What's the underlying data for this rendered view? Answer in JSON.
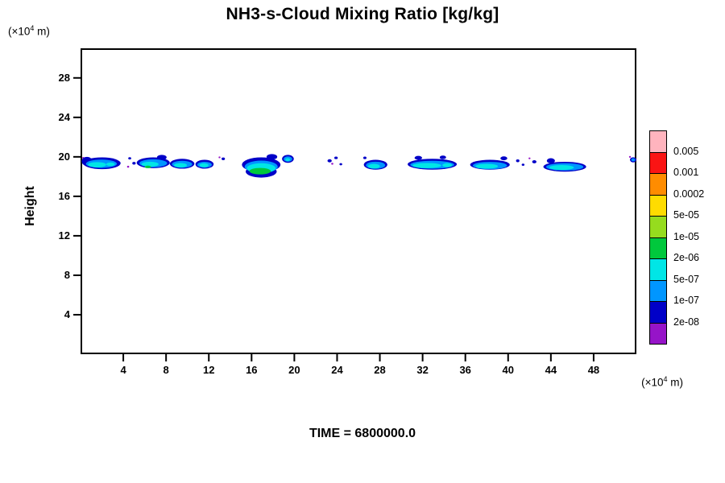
{
  "title": "NH3-s-Cloud Mixing Ratio [kg/kg]",
  "time_label": "TIME = 6800000.0",
  "y_axis": {
    "label": "Height",
    "unit_prefix": "(×10",
    "unit_sup": "4",
    "unit_suffix": " m)",
    "ticks": [
      4,
      8,
      12,
      16,
      20,
      24,
      28
    ],
    "range": [
      0,
      31
    ]
  },
  "x_axis": {
    "unit_prefix": "(×10",
    "unit_sup": "4",
    "unit_suffix": " m)",
    "ticks": [
      4,
      8,
      12,
      16,
      20,
      24,
      28,
      32,
      36,
      40,
      44,
      48
    ],
    "range": [
      0,
      52
    ]
  },
  "colorbar": {
    "labels": [
      "0.005",
      "0.001",
      "0.0002",
      "5e-05",
      "1e-05",
      "2e-06",
      "5e-07",
      "1e-07",
      "2e-08"
    ],
    "colors_top_to_bottom": [
      "#ffb4be",
      "#fa1414",
      "#ff8c00",
      "#ffdc00",
      "#96dc1e",
      "#00c83c",
      "#00e6e6",
      "#0096ff",
      "#0000c8",
      "#9614c8"
    ]
  },
  "chart_data": {
    "type": "heatmap",
    "title": "NH3-s-Cloud Mixing Ratio [kg/kg]",
    "xlabel": "(×10^4 m)",
    "ylabel": "Height (×10^4 m)",
    "xlim": [
      0,
      52
    ],
    "ylim": [
      0,
      31
    ],
    "x_ticks": [
      4,
      8,
      12,
      16,
      20,
      24,
      28,
      32,
      36,
      40,
      44,
      48
    ],
    "y_ticks": [
      4,
      8,
      12,
      16,
      20,
      24,
      28
    ],
    "levels_kg_per_kg": [
      "2e-08",
      "1e-07",
      "5e-07",
      "2e-06",
      "1e-05",
      "5e-05",
      "0.0002",
      "0.001",
      "0.005"
    ],
    "annotation": "TIME = 6800000.0",
    "palette": {
      "purple": "#9614c8",
      "navy": "#0000c8",
      "lightblue": "#0096ff",
      "cyan": "#00e6e6",
      "green": "#00c83c"
    },
    "blobs": [
      [
        0.25,
        19.9,
        0.09,
        0.09,
        "purple"
      ],
      [
        4.45,
        19.0,
        0.1,
        0.1,
        "purple"
      ],
      [
        13.0,
        19.95,
        0.09,
        0.09,
        "purple"
      ],
      [
        23.55,
        19.3,
        0.1,
        0.1,
        "purple"
      ],
      [
        42.0,
        19.85,
        0.09,
        0.09,
        "purple"
      ],
      [
        51.4,
        20.0,
        0.09,
        0.09,
        "purple"
      ],
      [
        2.0,
        19.35,
        1.75,
        0.6,
        "navy"
      ],
      [
        0.6,
        19.55,
        0.5,
        0.45,
        "navy"
      ],
      [
        4.6,
        19.85,
        0.14,
        0.12,
        "navy"
      ],
      [
        5.0,
        19.35,
        0.16,
        0.14,
        "navy"
      ],
      [
        6.8,
        19.4,
        1.55,
        0.55,
        "navy"
      ],
      [
        7.6,
        19.95,
        0.45,
        0.25,
        "navy"
      ],
      [
        9.5,
        19.3,
        1.15,
        0.5,
        "navy"
      ],
      [
        11.6,
        19.25,
        0.85,
        0.45,
        "navy"
      ],
      [
        13.35,
        19.8,
        0.16,
        0.14,
        "navy"
      ],
      [
        16.9,
        19.2,
        1.8,
        0.75,
        "navy"
      ],
      [
        16.9,
        18.5,
        1.45,
        0.6,
        "navy"
      ],
      [
        17.9,
        20.0,
        0.5,
        0.28,
        "navy"
      ],
      [
        19.4,
        19.8,
        0.55,
        0.4,
        "navy"
      ],
      [
        23.3,
        19.6,
        0.2,
        0.16,
        "navy"
      ],
      [
        23.9,
        19.9,
        0.16,
        0.13,
        "navy"
      ],
      [
        24.35,
        19.25,
        0.13,
        0.11,
        "navy"
      ],
      [
        27.6,
        19.2,
        1.1,
        0.5,
        "navy"
      ],
      [
        26.6,
        19.9,
        0.15,
        0.13,
        "navy"
      ],
      [
        32.9,
        19.25,
        2.3,
        0.55,
        "navy"
      ],
      [
        31.6,
        19.9,
        0.35,
        0.2,
        "navy"
      ],
      [
        33.9,
        19.95,
        0.3,
        0.18,
        "navy"
      ],
      [
        38.3,
        19.2,
        1.85,
        0.5,
        "navy"
      ],
      [
        39.6,
        19.85,
        0.32,
        0.2,
        "navy"
      ],
      [
        40.9,
        19.6,
        0.16,
        0.14,
        "navy"
      ],
      [
        41.4,
        19.2,
        0.13,
        0.11,
        "navy"
      ],
      [
        42.45,
        19.5,
        0.2,
        0.16,
        "navy"
      ],
      [
        45.3,
        19.0,
        2.0,
        0.5,
        "navy"
      ],
      [
        44.0,
        19.6,
        0.38,
        0.26,
        "navy"
      ],
      [
        51.7,
        19.7,
        0.3,
        0.26,
        "navy"
      ],
      [
        1.95,
        19.3,
        1.45,
        0.42,
        "lightblue"
      ],
      [
        6.8,
        19.35,
        1.3,
        0.4,
        "lightblue"
      ],
      [
        9.5,
        19.25,
        0.95,
        0.35,
        "lightblue"
      ],
      [
        11.6,
        19.2,
        0.68,
        0.3,
        "lightblue"
      ],
      [
        16.9,
        19.0,
        1.55,
        0.62,
        "lightblue"
      ],
      [
        19.4,
        19.78,
        0.4,
        0.27,
        "lightblue"
      ],
      [
        27.6,
        19.15,
        0.9,
        0.36,
        "lightblue"
      ],
      [
        32.9,
        19.2,
        2.05,
        0.4,
        "lightblue"
      ],
      [
        38.3,
        19.12,
        1.6,
        0.37,
        "lightblue"
      ],
      [
        45.3,
        18.98,
        1.75,
        0.37,
        "lightblue"
      ],
      [
        51.7,
        19.7,
        0.18,
        0.15,
        "lightblue"
      ],
      [
        1.55,
        19.2,
        0.85,
        0.27,
        "cyan"
      ],
      [
        2.8,
        19.25,
        0.4,
        0.18,
        "cyan"
      ],
      [
        6.5,
        19.25,
        0.8,
        0.26,
        "cyan"
      ],
      [
        9.35,
        19.15,
        0.6,
        0.23,
        "cyan"
      ],
      [
        11.55,
        19.15,
        0.42,
        0.2,
        "cyan"
      ],
      [
        16.9,
        18.85,
        1.35,
        0.5,
        "cyan"
      ],
      [
        19.38,
        19.72,
        0.22,
        0.15,
        "cyan"
      ],
      [
        27.45,
        19.05,
        0.55,
        0.24,
        "cyan"
      ],
      [
        32.4,
        19.12,
        1.35,
        0.26,
        "cyan"
      ],
      [
        34.3,
        19.15,
        0.45,
        0.2,
        "cyan"
      ],
      [
        38.0,
        19.05,
        1.05,
        0.24,
        "cyan"
      ],
      [
        45.0,
        18.92,
        1.15,
        0.25,
        "cyan"
      ],
      [
        6.3,
        18.98,
        0.3,
        0.13,
        "green"
      ],
      [
        16.8,
        18.55,
        1.0,
        0.33,
        "green"
      ]
    ]
  }
}
